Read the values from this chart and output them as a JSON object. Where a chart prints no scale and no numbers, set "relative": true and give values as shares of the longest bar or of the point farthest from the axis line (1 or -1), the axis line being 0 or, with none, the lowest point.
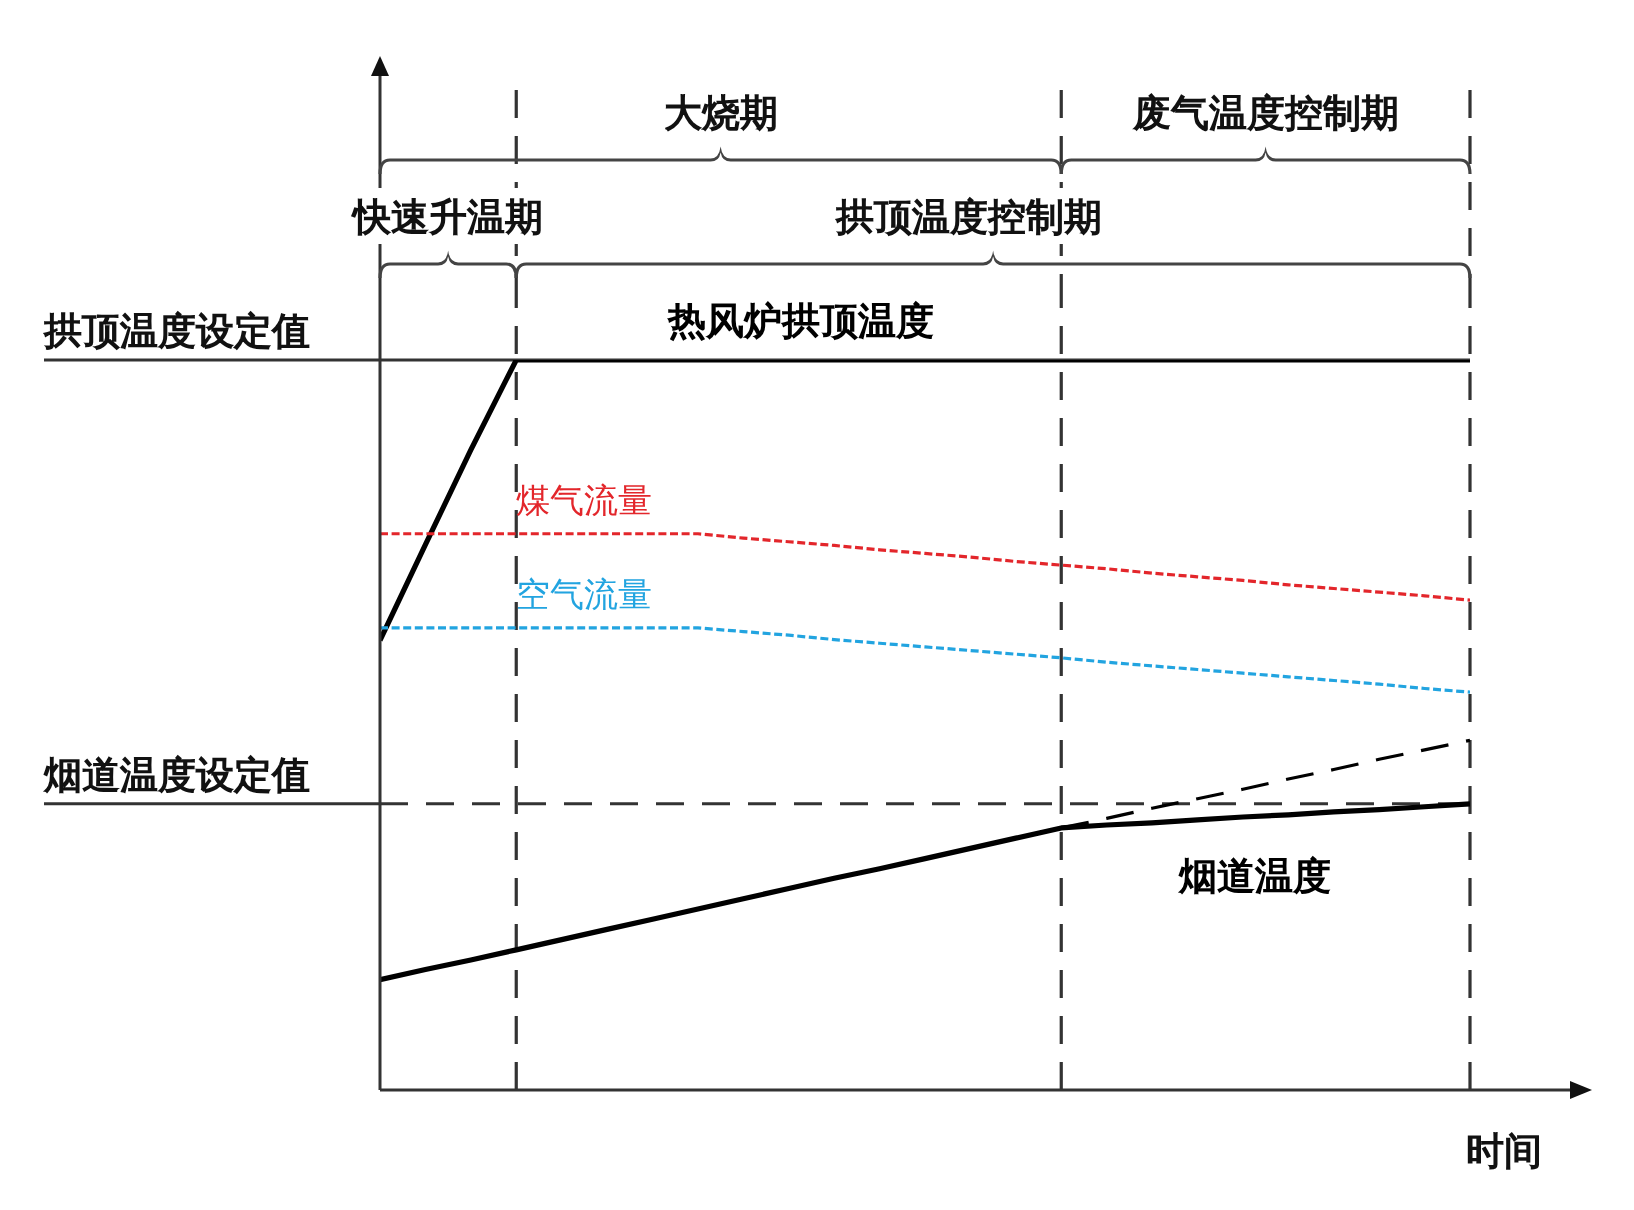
{
  "chart_data": {
    "type": "line",
    "relative": true,
    "xlabel": "时间",
    "categories": [
      null,
      null,
      null,
      null,
      null,
      null,
      null,
      null,
      null,
      null,
      null,
      null,
      null,
      null,
      null,
      null,
      null,
      null,
      null,
      null,
      null,
      null,
      null,
      null,
      null
    ],
    "series": [
      {
        "name": "热风炉拱顶温度",
        "color": "#000000",
        "values": [
          0.616,
          0.747,
          0.877,
          1,
          1,
          1,
          1,
          1,
          1,
          1,
          1,
          1,
          1,
          1,
          1,
          1,
          1,
          1,
          1,
          1,
          1,
          1,
          1,
          1,
          1
        ]
      },
      {
        "name": "煤气流量",
        "color": "#e3262b",
        "line_style": "dotted",
        "values": [
          0.762,
          0.762,
          0.762,
          0.762,
          0.762,
          0.762,
          0.762,
          0.762,
          0.756,
          0.751,
          0.746,
          0.74,
          0.735,
          0.73,
          0.724,
          0.719,
          0.714,
          0.708,
          0.703,
          0.698,
          0.692,
          0.687,
          0.682,
          0.677,
          0.671
        ]
      },
      {
        "name": "空气流量",
        "color": "#22a4e0",
        "line_style": "dotted",
        "values": [
          0.633,
          0.633,
          0.633,
          0.633,
          0.633,
          0.633,
          0.633,
          0.633,
          0.628,
          0.623,
          0.617,
          0.612,
          0.607,
          0.602,
          0.597,
          0.592,
          0.586,
          0.581,
          0.576,
          0.571,
          0.566,
          0.561,
          0.556,
          0.55,
          0.545
        ]
      },
      {
        "name": "烟道温度",
        "color": "#000000",
        "values": [
          0.151,
          0.165,
          0.178,
          0.192,
          0.206,
          0.22,
          0.234,
          0.248,
          0.262,
          0.276,
          0.29,
          0.303,
          0.317,
          0.331,
          0.345,
          0.359,
          0.363,
          0.366,
          0.37,
          0.374,
          0.377,
          0.381,
          0.384,
          0.388,
          0.392
        ]
      },
      {
        "color": "#000000",
        "line_style": "dashed",
        "values": [
          null,
          null,
          null,
          null,
          null,
          null,
          null,
          null,
          null,
          null,
          null,
          null,
          null,
          null,
          null,
          0.359,
          0.372,
          0.386,
          0.399,
          0.412,
          0.426,
          0.439,
          0.453,
          0.466,
          0.479
        ]
      }
    ],
    "ref_lines": [
      {
        "axis": "y",
        "value": 1,
        "label": "拱顶温度设定值"
      },
      {
        "axis": "y",
        "value": 0.392,
        "label": "烟道温度设定值",
        "line_style": "dashed"
      }
    ],
    "annotations": [
      "大烧期",
      "废气温度控制期",
      "快速升温期",
      "拱顶温度控制期"
    ],
    "legend": false,
    "grid": false,
    "marker": "none"
  }
}
